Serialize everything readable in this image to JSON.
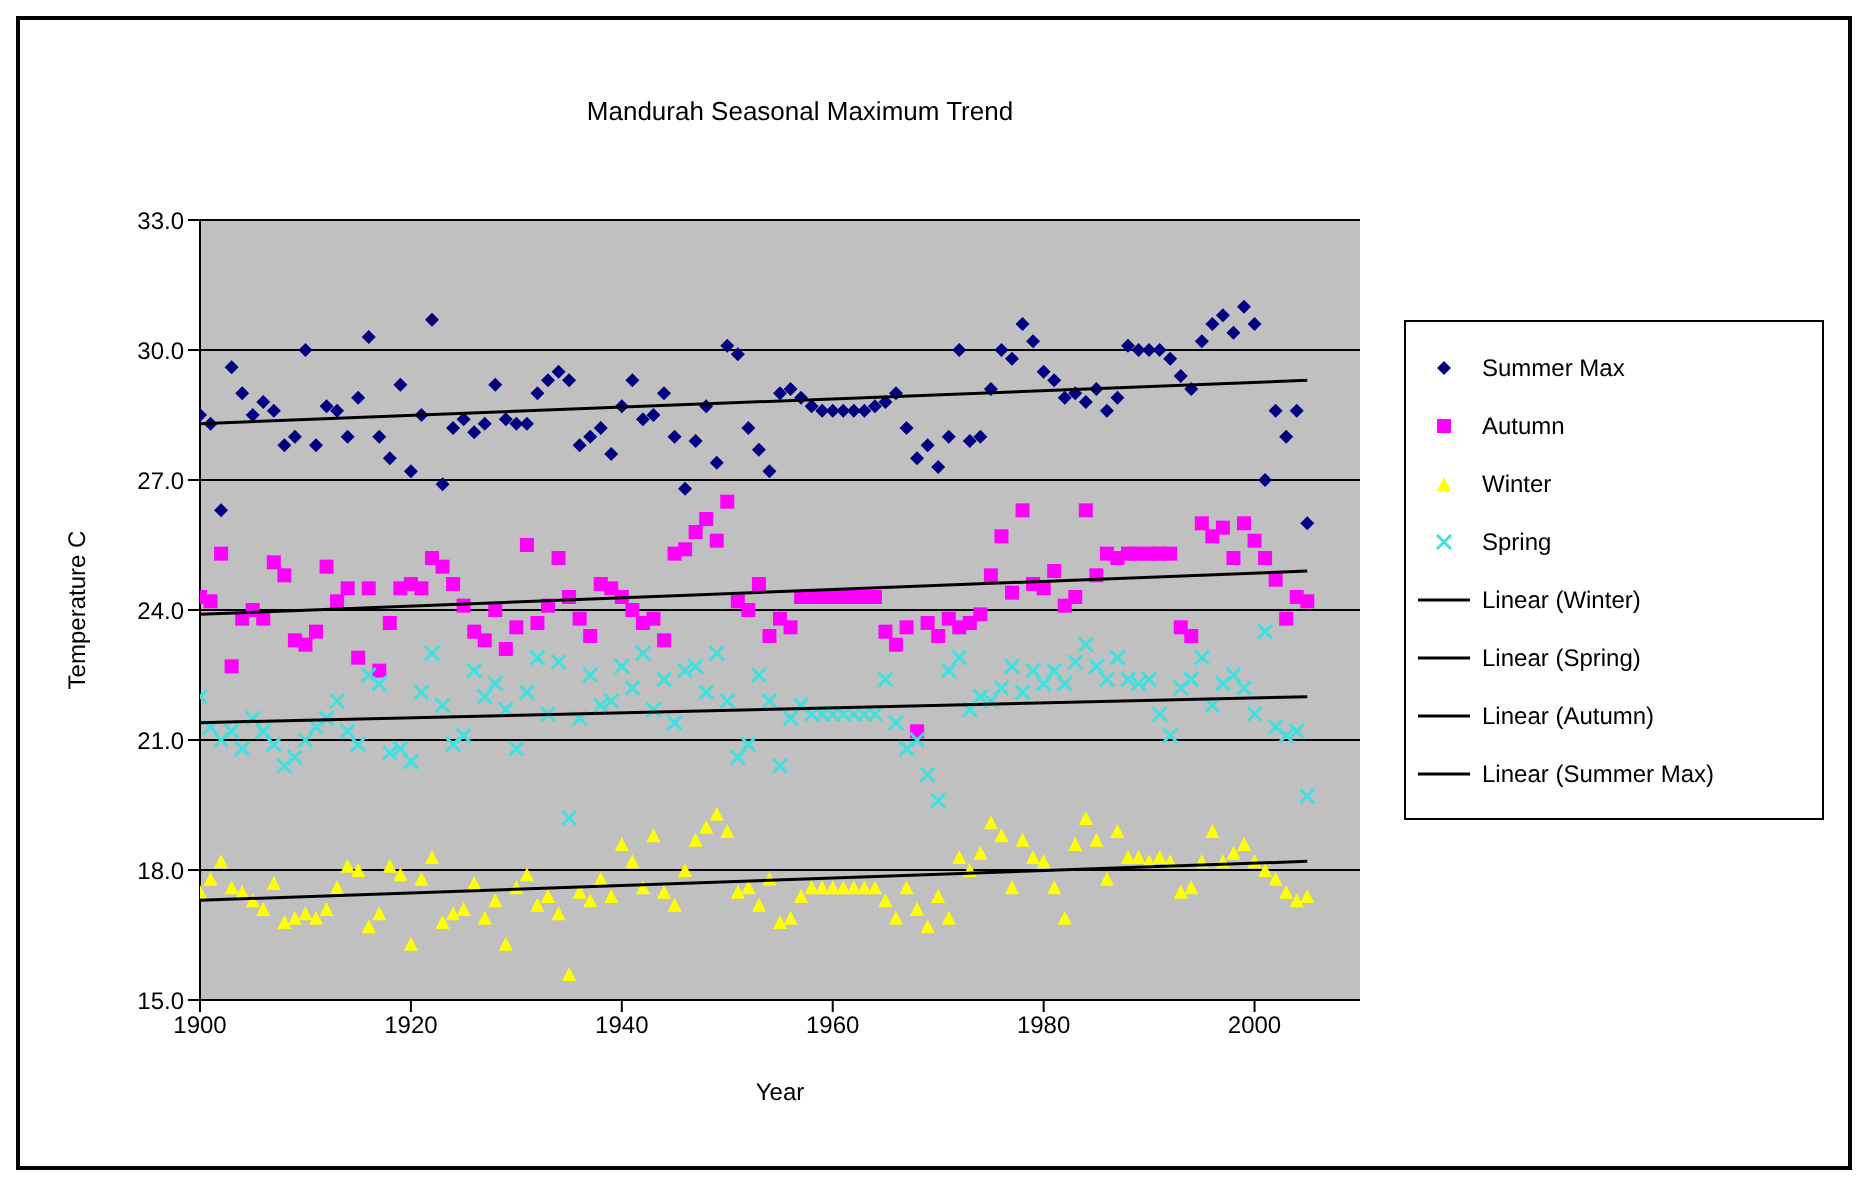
{
  "chart_data": {
    "type": "scatter",
    "title": "Mandurah Seasonal Maximum Trend",
    "xlabel": "Year",
    "ylabel": "Temperature C",
    "x": [
      1900,
      1901,
      1902,
      1903,
      1904,
      1905,
      1906,
      1907,
      1908,
      1909,
      1910,
      1911,
      1912,
      1913,
      1914,
      1915,
      1916,
      1917,
      1918,
      1919,
      1920,
      1921,
      1922,
      1923,
      1924,
      1925,
      1926,
      1927,
      1928,
      1929,
      1930,
      1931,
      1932,
      1933,
      1934,
      1935,
      1936,
      1937,
      1938,
      1939,
      1940,
      1941,
      1942,
      1943,
      1944,
      1945,
      1946,
      1947,
      1948,
      1949,
      1950,
      1951,
      1952,
      1953,
      1954,
      1955,
      1956,
      1957,
      1958,
      1959,
      1960,
      1961,
      1962,
      1963,
      1964,
      1965,
      1966,
      1967,
      1968,
      1969,
      1970,
      1971,
      1972,
      1973,
      1974,
      1975,
      1976,
      1977,
      1978,
      1979,
      1980,
      1981,
      1982,
      1983,
      1984,
      1985,
      1986,
      1987,
      1988,
      1989,
      1990,
      1991,
      1992,
      1993,
      1994,
      1995,
      1996,
      1997,
      1998,
      1999,
      2000,
      2001,
      2002,
      2003,
      2004,
      2005
    ],
    "xlim": [
      1900,
      2010
    ],
    "xticks": [
      1900,
      1920,
      1940,
      1960,
      1980,
      2000
    ],
    "ylim": [
      15,
      33
    ],
    "yticks": [
      {
        "value": 15,
        "label": "15.0"
      },
      {
        "value": 18,
        "label": "18.0"
      },
      {
        "value": 21,
        "label": "21.0"
      },
      {
        "value": 24,
        "label": "24.0"
      },
      {
        "value": 27,
        "label": "27.0"
      },
      {
        "value": 30,
        "label": "30.0"
      },
      {
        "value": 33,
        "label": "33.0"
      }
    ],
    "grid": "y",
    "legend": "right",
    "series": [
      {
        "name": "Summer Max",
        "marker": "diamond",
        "color": "#000080",
        "values": [
          28.5,
          28.3,
          26.3,
          29.6,
          29.0,
          28.5,
          28.8,
          28.6,
          27.8,
          28.0,
          30.0,
          27.8,
          28.7,
          28.6,
          28.0,
          28.9,
          30.3,
          28.0,
          27.5,
          29.2,
          27.2,
          28.5,
          30.7,
          26.9,
          28.2,
          28.4,
          28.1,
          28.3,
          29.2,
          28.4,
          28.3,
          28.3,
          29.0,
          29.3,
          29.5,
          29.3,
          27.8,
          28.0,
          28.2,
          27.6,
          28.7,
          29.3,
          28.4,
          28.5,
          29.0,
          28.0,
          26.8,
          27.9,
          28.7,
          27.4,
          30.1,
          29.9,
          28.2,
          27.7,
          27.2,
          29.0,
          29.1,
          28.9,
          28.7,
          28.6,
          28.6,
          28.6,
          28.6,
          28.6,
          28.7,
          28.8,
          29.0,
          28.2,
          27.5,
          27.8,
          27.3,
          28.0,
          30.0,
          27.9,
          28.0,
          29.1,
          30.0,
          29.8,
          30.6,
          30.2,
          29.5,
          29.3,
          28.9,
          29.0,
          28.8,
          29.1,
          28.6,
          28.9,
          30.1,
          30.0,
          30.0,
          30.0,
          29.8,
          29.4,
          29.1,
          30.2,
          30.6,
          30.8,
          30.4,
          31.0,
          30.6,
          27.0,
          28.6,
          28.0,
          28.6,
          26.0
        ]
      },
      {
        "name": "Autumn",
        "marker": "square",
        "color": "#ff00ff",
        "values": [
          24.3,
          24.2,
          25.3,
          22.7,
          23.8,
          24.0,
          23.8,
          25.1,
          24.8,
          23.3,
          23.2,
          23.5,
          25.0,
          24.2,
          24.5,
          22.9,
          24.5,
          22.6,
          23.7,
          24.5,
          24.6,
          24.5,
          25.2,
          25.0,
          24.6,
          24.1,
          23.5,
          23.3,
          24.0,
          23.1,
          23.6,
          25.5,
          23.7,
          24.1,
          25.2,
          24.3,
          23.8,
          23.4,
          24.6,
          24.5,
          24.3,
          24.0,
          23.7,
          23.8,
          23.3,
          25.3,
          25.4,
          25.8,
          26.1,
          25.6,
          26.5,
          24.2,
          24.0,
          24.6,
          23.4,
          23.8,
          23.6,
          24.3,
          24.3,
          24.3,
          24.3,
          24.3,
          24.3,
          24.3,
          24.3,
          23.5,
          23.2,
          23.6,
          21.2,
          23.7,
          23.4,
          23.8,
          23.6,
          23.7,
          23.9,
          24.8,
          25.7,
          24.4,
          26.3,
          24.6,
          24.5,
          24.9,
          24.1,
          24.3,
          26.3,
          24.8,
          25.3,
          25.2,
          25.3,
          25.3,
          25.3,
          25.3,
          25.3,
          23.6,
          23.4,
          26.0,
          25.7,
          25.9,
          25.2,
          26.0,
          25.6,
          25.2,
          24.7,
          23.8,
          24.3,
          24.2
        ]
      },
      {
        "name": "Winter",
        "marker": "triangle",
        "color": "#ffff00",
        "values": [
          17.5,
          17.8,
          18.2,
          17.6,
          17.5,
          17.3,
          17.1,
          17.7,
          16.8,
          16.9,
          17.0,
          16.9,
          17.1,
          17.6,
          18.1,
          18.0,
          16.7,
          17.0,
          18.1,
          17.9,
          16.3,
          17.8,
          18.3,
          16.8,
          17.0,
          17.1,
          17.7,
          16.9,
          17.3,
          16.3,
          17.6,
          17.9,
          17.2,
          17.4,
          17.0,
          15.6,
          17.5,
          17.3,
          17.8,
          17.4,
          18.6,
          18.2,
          17.6,
          18.8,
          17.5,
          17.2,
          18.0,
          18.7,
          19.0,
          19.3,
          18.9,
          17.5,
          17.6,
          17.2,
          17.8,
          16.8,
          16.9,
          17.4,
          17.6,
          17.6,
          17.6,
          17.6,
          17.6,
          17.6,
          17.6,
          17.3,
          16.9,
          17.6,
          17.1,
          16.7,
          17.4,
          16.9,
          18.3,
          18.0,
          18.4,
          19.1,
          18.8,
          17.6,
          18.7,
          18.3,
          18.2,
          17.6,
          16.9,
          18.6,
          19.2,
          18.7,
          17.8,
          18.9,
          18.3,
          18.3,
          18.2,
          18.3,
          18.2,
          17.5,
          17.6,
          18.2,
          18.9,
          18.2,
          18.4,
          18.6,
          18.2,
          18.0,
          17.8,
          17.5,
          17.3,
          17.4
        ]
      },
      {
        "name": "Spring",
        "marker": "cross",
        "color": "#40e0e0",
        "values": [
          22.0,
          21.3,
          21.0,
          21.2,
          20.8,
          21.5,
          21.2,
          20.9,
          20.4,
          20.6,
          21.0,
          21.3,
          21.5,
          21.9,
          21.2,
          20.9,
          22.5,
          22.3,
          20.7,
          20.8,
          20.5,
          22.1,
          23.0,
          21.8,
          20.9,
          21.1,
          22.6,
          22.0,
          22.3,
          21.7,
          20.8,
          22.1,
          22.9,
          21.6,
          22.8,
          19.2,
          21.5,
          22.5,
          21.8,
          21.9,
          22.7,
          22.2,
          23.0,
          21.7,
          22.4,
          21.4,
          22.6,
          22.7,
          22.1,
          23.0,
          21.9,
          20.6,
          20.9,
          22.5,
          21.9,
          20.4,
          21.5,
          21.8,
          21.6,
          21.6,
          21.6,
          21.6,
          21.6,
          21.6,
          21.6,
          22.4,
          21.4,
          20.8,
          21.0,
          20.2,
          19.6,
          22.6,
          22.9,
          21.7,
          22.0,
          21.9,
          22.2,
          22.7,
          22.1,
          22.6,
          22.3,
          22.6,
          22.3,
          22.8,
          23.2,
          22.7,
          22.4,
          22.9,
          22.4,
          22.3,
          22.4,
          21.6,
          21.1,
          22.2,
          22.4,
          22.9,
          21.8,
          22.3,
          22.5,
          22.2,
          21.6,
          23.5,
          21.3,
          21.1,
          21.2,
          19.7
        ]
      },
      {
        "name": "Linear (Winter)",
        "type": "line",
        "marker": "none",
        "color": "#000000",
        "values": [
          17.3,
          null,
          null,
          null,
          null,
          null,
          null,
          null,
          null,
          null,
          null,
          null,
          null,
          null,
          null,
          null,
          null,
          null,
          null,
          null,
          null,
          null,
          null,
          null,
          null,
          null,
          null,
          null,
          null,
          null,
          null,
          null,
          null,
          null,
          null,
          null,
          null,
          null,
          null,
          null,
          null,
          null,
          null,
          null,
          null,
          null,
          null,
          null,
          null,
          null,
          null,
          null,
          null,
          null,
          null,
          null,
          null,
          null,
          null,
          null,
          null,
          null,
          null,
          null,
          null,
          null,
          null,
          null,
          null,
          null,
          null,
          null,
          null,
          null,
          null,
          null,
          null,
          null,
          null,
          null,
          null,
          null,
          null,
          null,
          null,
          null,
          null,
          null,
          null,
          null,
          null,
          null,
          null,
          null,
          null,
          null,
          null,
          null,
          null,
          null,
          null,
          null,
          null,
          null,
          null,
          18.2
        ]
      },
      {
        "name": "Linear (Spring)",
        "type": "line",
        "marker": "none",
        "color": "#000000",
        "values": [
          21.4,
          null,
          null,
          null,
          null,
          null,
          null,
          null,
          null,
          null,
          null,
          null,
          null,
          null,
          null,
          null,
          null,
          null,
          null,
          null,
          null,
          null,
          null,
          null,
          null,
          null,
          null,
          null,
          null,
          null,
          null,
          null,
          null,
          null,
          null,
          null,
          null,
          null,
          null,
          null,
          null,
          null,
          null,
          null,
          null,
          null,
          null,
          null,
          null,
          null,
          null,
          null,
          null,
          null,
          null,
          null,
          null,
          null,
          null,
          null,
          null,
          null,
          null,
          null,
          null,
          null,
          null,
          null,
          null,
          null,
          null,
          null,
          null,
          null,
          null,
          null,
          null,
          null,
          null,
          null,
          null,
          null,
          null,
          null,
          null,
          null,
          null,
          null,
          null,
          null,
          null,
          null,
          null,
          null,
          null,
          null,
          null,
          null,
          null,
          null,
          null,
          null,
          null,
          null,
          null,
          22.0
        ]
      },
      {
        "name": "Linear (Autumn)",
        "type": "line",
        "marker": "none",
        "color": "#000000",
        "values": [
          23.9,
          null,
          null,
          null,
          null,
          null,
          null,
          null,
          null,
          null,
          null,
          null,
          null,
          null,
          null,
          null,
          null,
          null,
          null,
          null,
          null,
          null,
          null,
          null,
          null,
          null,
          null,
          null,
          null,
          null,
          null,
          null,
          null,
          null,
          null,
          null,
          null,
          null,
          null,
          null,
          null,
          null,
          null,
          null,
          null,
          null,
          null,
          null,
          null,
          null,
          null,
          null,
          null,
          null,
          null,
          null,
          null,
          null,
          null,
          null,
          null,
          null,
          null,
          null,
          null,
          null,
          null,
          null,
          null,
          null,
          null,
          null,
          null,
          null,
          null,
          null,
          null,
          null,
          null,
          null,
          null,
          null,
          null,
          null,
          null,
          null,
          null,
          null,
          null,
          null,
          null,
          null,
          null,
          null,
          null,
          null,
          null,
          null,
          null,
          null,
          null,
          null,
          null,
          null,
          null,
          24.9
        ]
      },
      {
        "name": "Linear (Summer Max)",
        "type": "line",
        "marker": "none",
        "color": "#000000",
        "values": [
          28.3,
          null,
          null,
          null,
          null,
          null,
          null,
          null,
          null,
          null,
          null,
          null,
          null,
          null,
          null,
          null,
          null,
          null,
          null,
          null,
          null,
          null,
          null,
          null,
          null,
          null,
          null,
          null,
          null,
          null,
          null,
          null,
          null,
          null,
          null,
          null,
          null,
          null,
          null,
          null,
          null,
          null,
          null,
          null,
          null,
          null,
          null,
          null,
          null,
          null,
          null,
          null,
          null,
          null,
          null,
          null,
          null,
          null,
          null,
          null,
          null,
          null,
          null,
          null,
          null,
          null,
          null,
          null,
          null,
          null,
          null,
          null,
          null,
          null,
          null,
          null,
          null,
          null,
          null,
          null,
          null,
          null,
          null,
          null,
          null,
          null,
          null,
          null,
          null,
          null,
          null,
          null,
          null,
          null,
          null,
          null,
          null,
          null,
          null,
          null,
          null,
          null,
          null,
          null,
          null,
          29.3
        ]
      }
    ]
  }
}
